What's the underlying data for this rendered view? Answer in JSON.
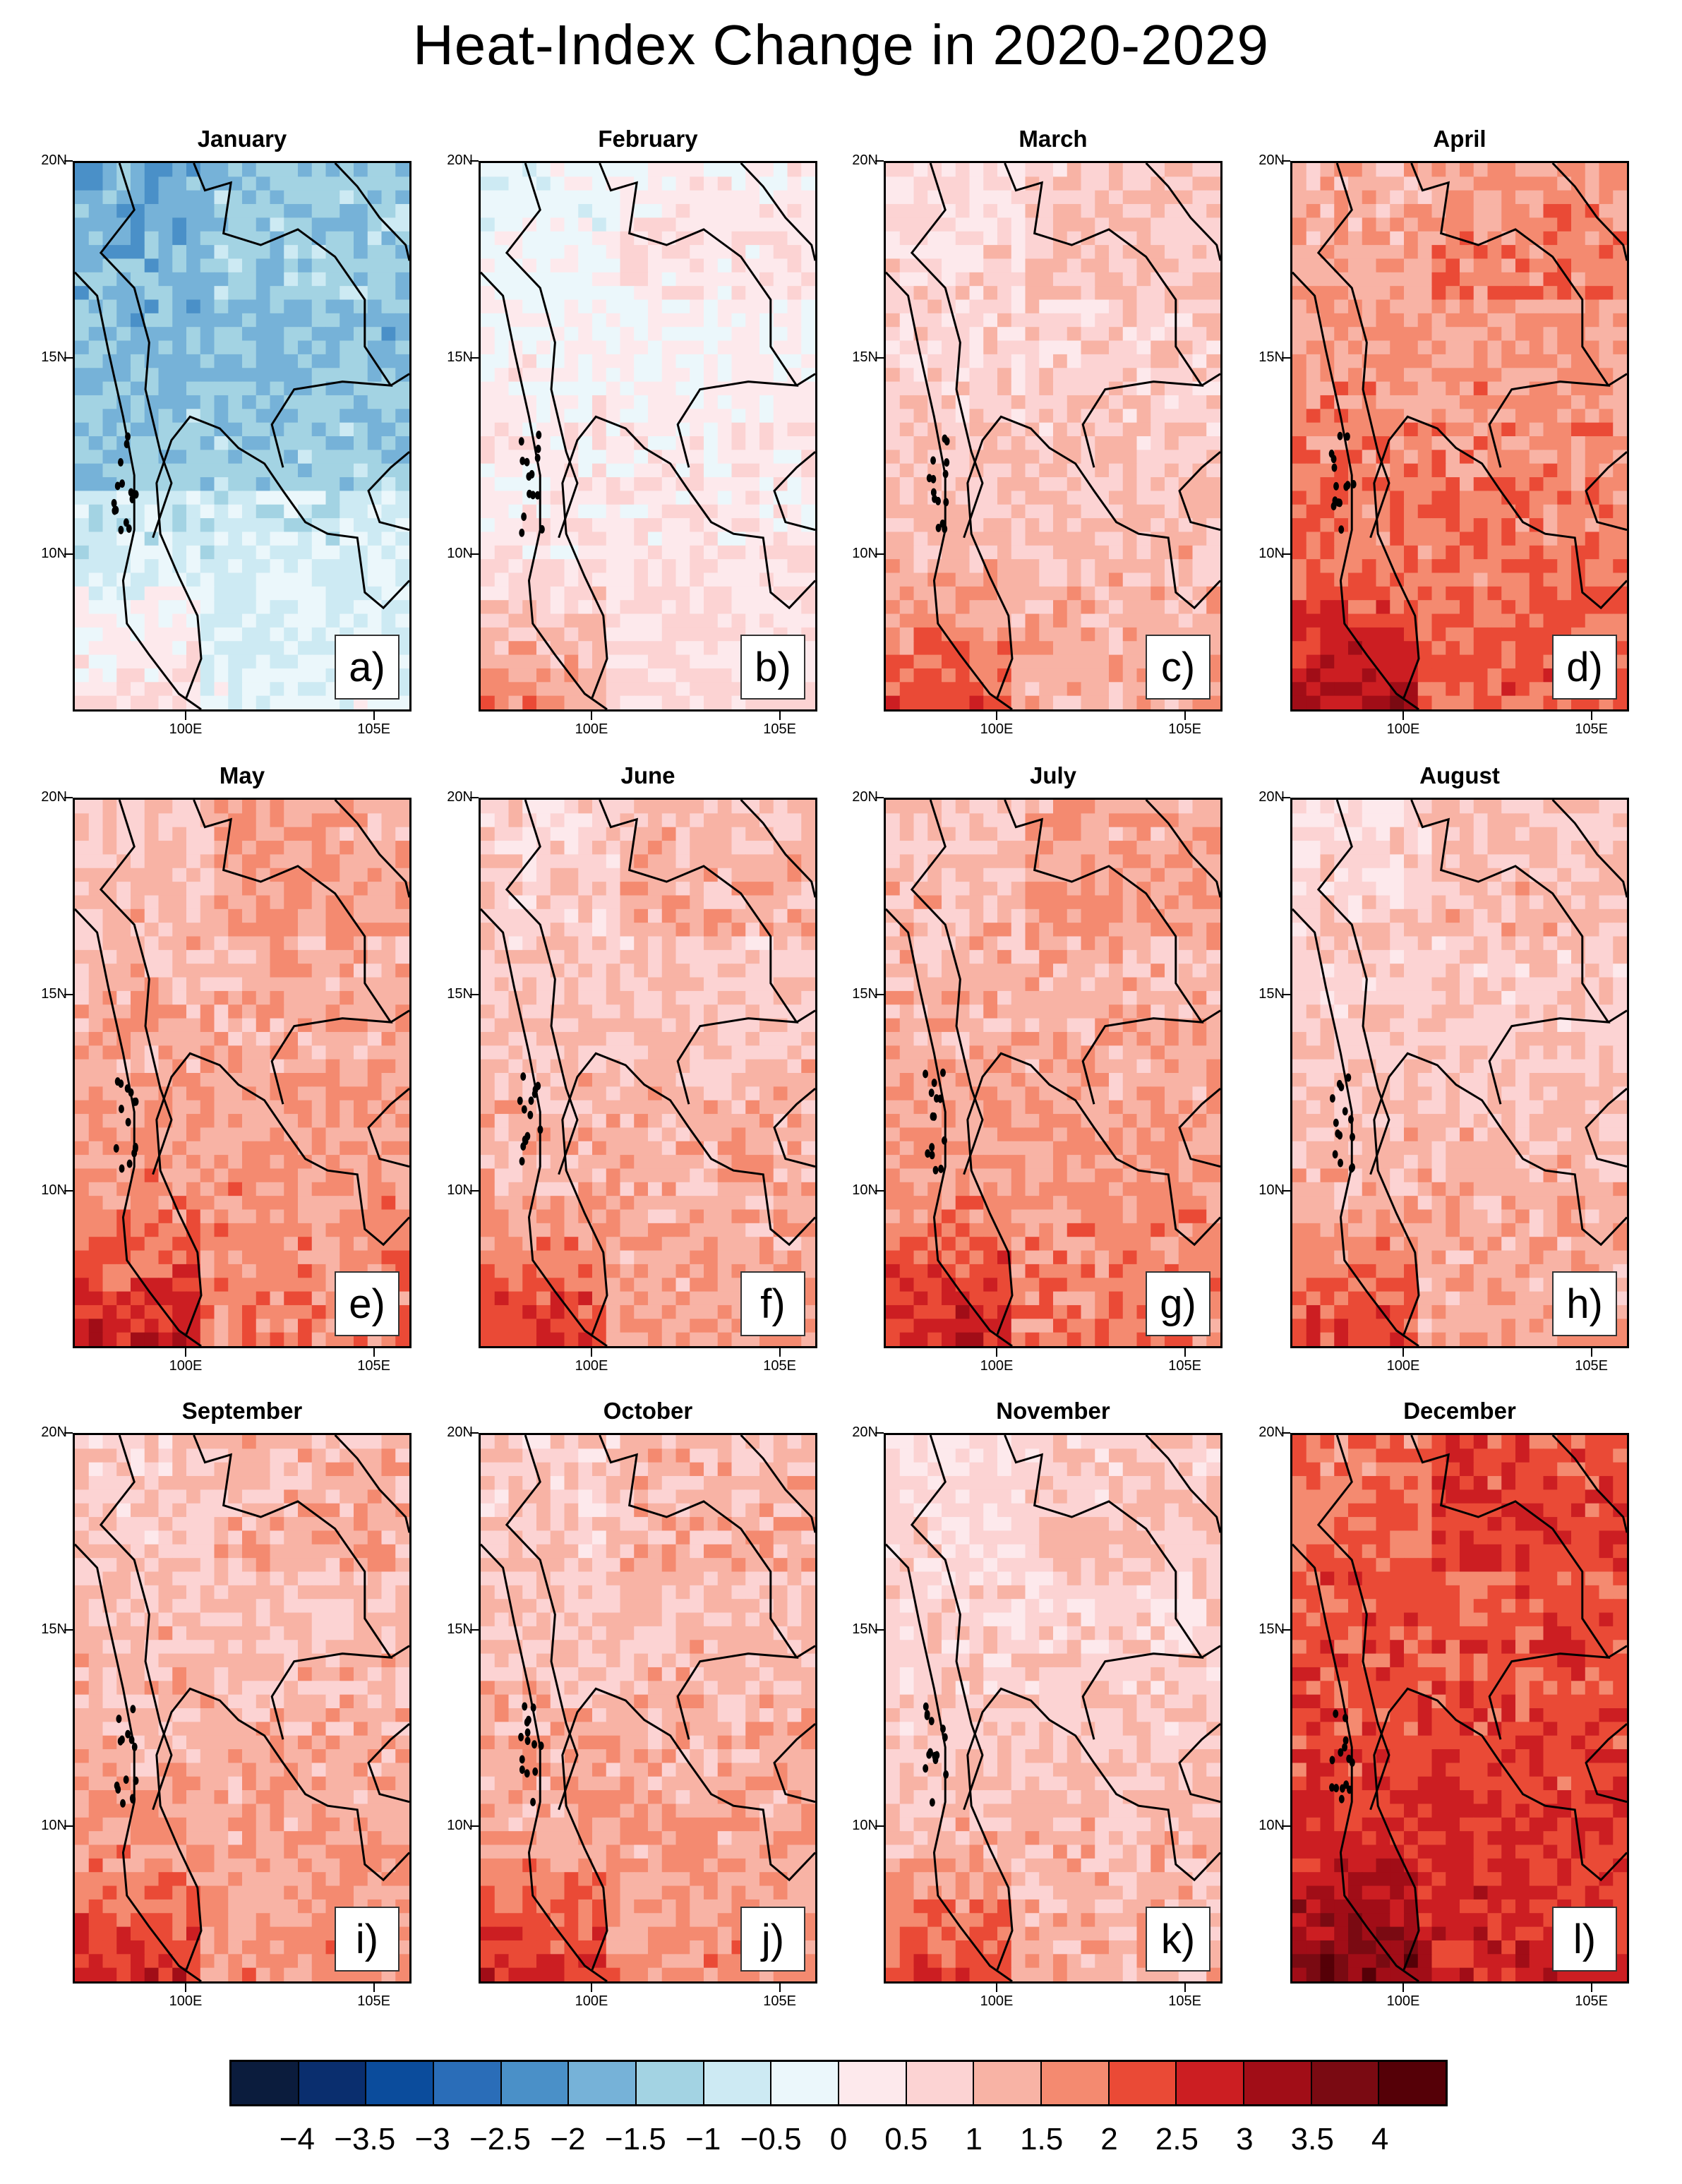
{
  "title": "Heat-Index Change in 2020-2029",
  "chart_data": {
    "type": "heatmap",
    "title": "Heat-Index Change in 2020-2029",
    "y_ticks": [
      "20N",
      "15N",
      "10N"
    ],
    "x_ticks": [
      "100E",
      "105E"
    ],
    "lat_range": [
      6,
      20
    ],
    "lon_range": [
      97,
      106
    ],
    "colorbar": {
      "levels": [
        "−4",
        "−3.5",
        "−3",
        "−2.5",
        "−2",
        "−1.5",
        "−1",
        "−0.5",
        "0",
        "0.5",
        "1",
        "1.5",
        "2",
        "2.5",
        "3",
        "3.5",
        "4"
      ],
      "colors": [
        "#0b1c3d",
        "#0a2e6e",
        "#0b4c9c",
        "#2a6db8",
        "#4a90c8",
        "#76b2d8",
        "#a3d3e3",
        "#cdeaf3",
        "#ebf7fb",
        "#fde9ec",
        "#fcd3d3",
        "#f8b3a5",
        "#f48a70",
        "#ea4a36",
        "#cc1e22",
        "#a10d17",
        "#7a0a12",
        "#550007"
      ]
    },
    "panels": [
      {
        "month": "January",
        "label": "a)",
        "mean_change": -0.8
      },
      {
        "month": "February",
        "label": "b)",
        "mean_change": 0.2
      },
      {
        "month": "March",
        "label": "c)",
        "mean_change": 0.9
      },
      {
        "month": "April",
        "label": "d)",
        "mean_change": 1.7
      },
      {
        "month": "May",
        "label": "e)",
        "mean_change": 1.4
      },
      {
        "month": "June",
        "label": "f)",
        "mean_change": 1.1
      },
      {
        "month": "July",
        "label": "g)",
        "mean_change": 1.4
      },
      {
        "month": "August",
        "label": "h)",
        "mean_change": 1.0
      },
      {
        "month": "September",
        "label": "i)",
        "mean_change": 1.2
      },
      {
        "month": "October",
        "label": "j)",
        "mean_change": 1.2
      },
      {
        "month": "November",
        "label": "k)",
        "mean_change": 0.9
      },
      {
        "month": "December",
        "label": "l)",
        "mean_change": 2.3
      }
    ]
  }
}
